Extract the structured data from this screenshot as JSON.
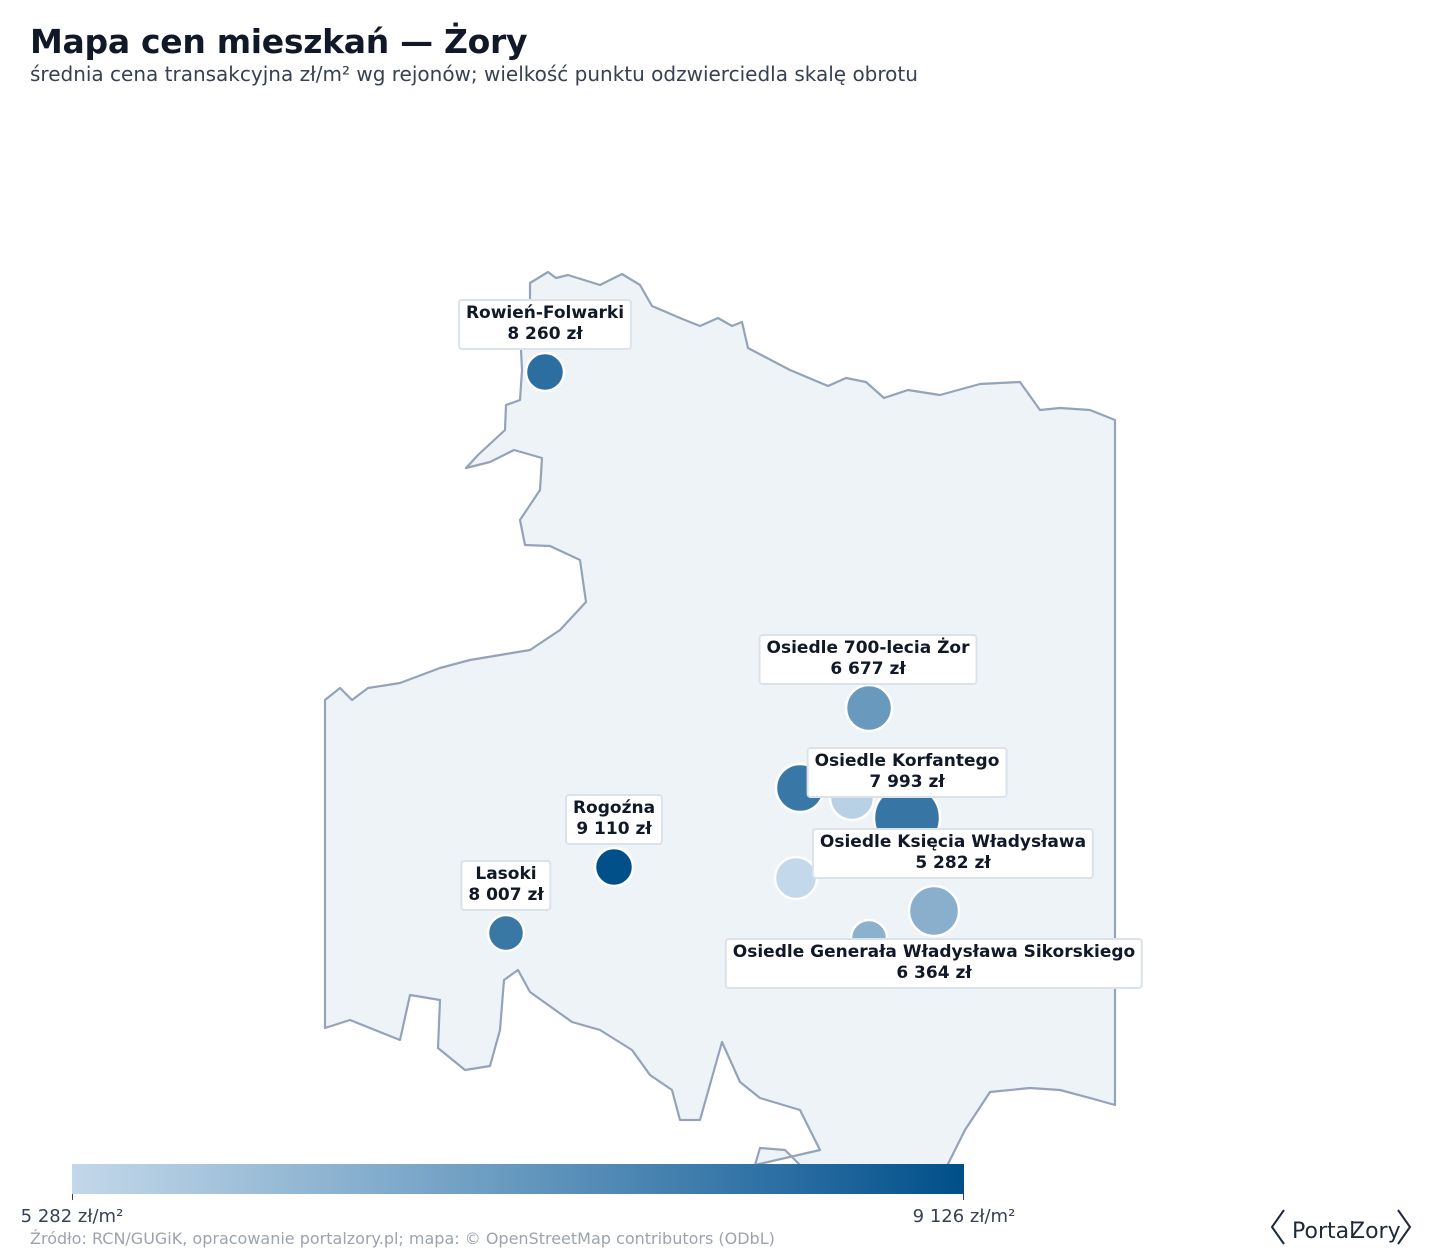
{
  "header": {
    "title": "Mapa cen mieszkań — Żory",
    "subtitle": "średnia cena transakcyjna zł/m² wg rejonów; wielkość punktu odzwierciedla skalę obrotu"
  },
  "map": {
    "fill_color": "#eef3f8",
    "border_color": "#94a3b8",
    "points": [
      {
        "name": "Rowień-Folwarki",
        "price_label": "8 260 zł",
        "price": 8260,
        "labeled": true
      },
      {
        "name": "Osiedle 700-lecia Żor",
        "price_label": "6 677 zł",
        "price": 6677,
        "labeled": true
      },
      {
        "name": "Osiedle Korfantego",
        "price_label": "7 993 zł",
        "price": 7993,
        "labeled": true
      },
      {
        "name": "Rogoźna",
        "price_label": "9 110 zł",
        "price": 9110,
        "labeled": true
      },
      {
        "name": "Osiedle Księcia Władysława",
        "price_label": "5 282 zł",
        "price": 5282,
        "labeled": true
      },
      {
        "name": "Lasoki",
        "price_label": "8 007 zł",
        "price": 8007,
        "labeled": true
      },
      {
        "name": "Osiedle Generała Władysława Sikorskiego",
        "price_label": "6 364 zł",
        "price": 6364,
        "labeled": true
      }
    ]
  },
  "colorbar": {
    "min_label": "5 282 zł/m²",
    "max_label": "9 126 zł/m²",
    "min_value": 5282,
    "max_value": 9126,
    "color_low": "#c3d8ea",
    "color_high": "#004f89"
  },
  "footer": {
    "source": "Źródło: RCN/GUGiK, opracowanie portalzory.pl; mapa: © OpenStreetMap contributors (ODbL)"
  },
  "logo": {
    "part1": "Portal",
    "part2": "Zory"
  }
}
